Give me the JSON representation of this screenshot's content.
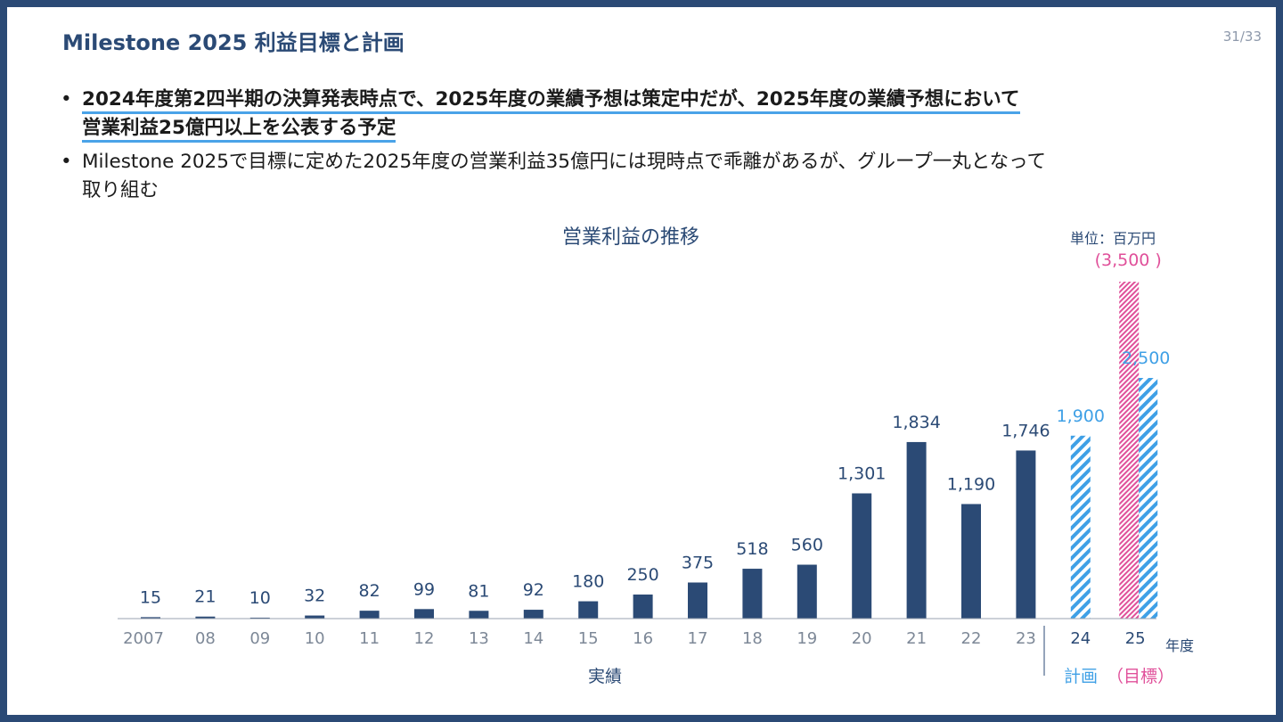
{
  "slide": {
    "title": "Milestone 2025 利益目標と計画",
    "page_number": "31/33",
    "bullets": [
      "2024年度第2四半期の決算発表時点で、2025年度の業績予想は策定中だが、2025年度の業績予想において",
      "営業利益25億円以上を公表する予定",
      "Milestone 2025で目標に定めた2025年度の営業利益35億円には現時点で乖離があるが、グループ一丸となって",
      "取り組む"
    ]
  },
  "chart_data": {
    "type": "bar",
    "title": "営業利益の推移",
    "unit_label": "単位：百万円",
    "categories": [
      "2007",
      "08",
      "09",
      "10",
      "11",
      "12",
      "13",
      "14",
      "15",
      "16",
      "17",
      "18",
      "19",
      "20",
      "21",
      "22",
      "23",
      "24",
      "25"
    ],
    "series": [
      {
        "values": [
          15,
          21,
          10,
          32,
          82,
          99,
          81,
          92,
          180,
          250,
          375,
          518,
          560,
          1301,
          1834,
          1190,
          1746,
          null,
          null
        ],
        "data_labels": [
          "15",
          "21",
          "10",
          "32",
          "82",
          "99",
          "81",
          "92",
          "180",
          "250",
          "375",
          "518",
          "560",
          "1,301",
          "1,834",
          "1,190",
          "1,746",
          "",
          ""
        ],
        "style": "solid",
        "color": "#2b4a75"
      },
      {
        "values": [
          null,
          null,
          null,
          null,
          null,
          null,
          null,
          null,
          null,
          null,
          null,
          null,
          null,
          null,
          null,
          null,
          null,
          1900,
          2500
        ],
        "data_labels": [
          "",
          "",
          "",
          "",
          "",
          "",
          "",
          "",
          "",
          "",
          "",
          "",
          "",
          "",
          "",
          "",
          "",
          "1,900",
          "2,500"
        ],
        "style": "hatched",
        "color": "#3fa0e6"
      },
      {
        "values": [
          null,
          null,
          null,
          null,
          null,
          null,
          null,
          null,
          null,
          null,
          null,
          null,
          null,
          null,
          null,
          null,
          null,
          null,
          3500
        ],
        "data_labels": [
          "",
          "",
          "",
          "",
          "",
          "",
          "",
          "",
          "",
          "",
          "",
          "",
          "",
          "",
          "",
          "",
          "",
          "",
          "(3,500 )"
        ],
        "style": "hatched",
        "color": "#e0509a"
      }
    ],
    "group_labels": {
      "actual": "実績",
      "plan": "計画",
      "target": "（目標）"
    },
    "x_unit": "年度",
    "ylim": [
      0,
      3500
    ],
    "grid": false,
    "legend": "none"
  }
}
